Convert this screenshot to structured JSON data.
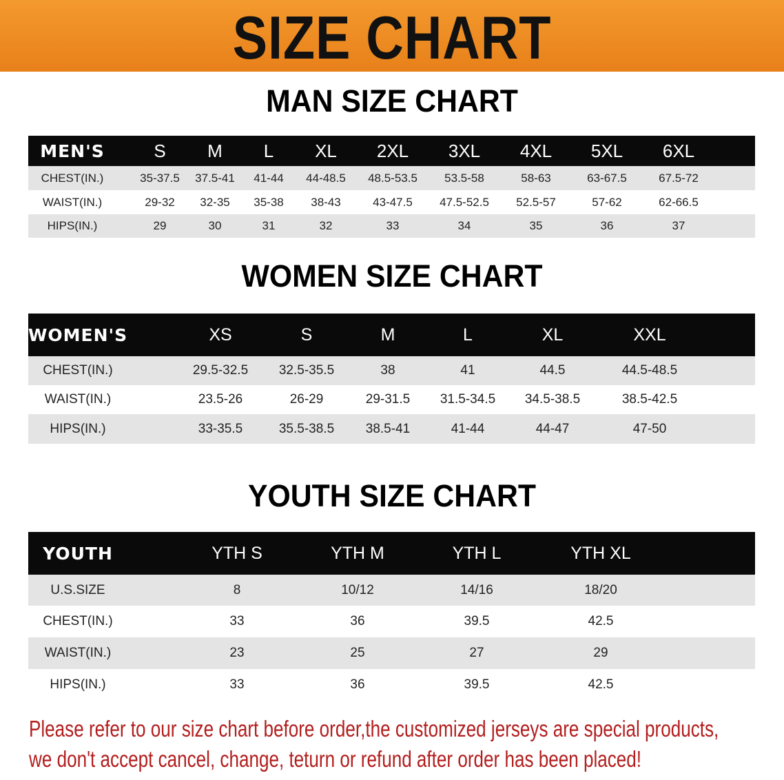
{
  "banner": {
    "title": "SIZE CHART",
    "color": "#ee8a22"
  },
  "men": {
    "title": "MAN SIZE CHART",
    "headers": [
      "MEN'S",
      "S",
      "M",
      "L",
      "XL",
      "2XL",
      "3XL",
      "4XL",
      "5XL",
      "6XL"
    ],
    "rows": [
      [
        "CHEST(IN.)",
        "35-37.5",
        "37.5-41",
        "41-44",
        "44-48.5",
        "48.5-53.5",
        "53.5-58",
        "58-63",
        "63-67.5",
        "67.5-72"
      ],
      [
        "WAIST(IN.)",
        "29-32",
        "32-35",
        "35-38",
        "38-43",
        "43-47.5",
        "47.5-52.5",
        "52.5-57",
        "57-62",
        "62-66.5"
      ],
      [
        "HIPS(IN.)",
        "29",
        "30",
        "31",
        "32",
        "33",
        "34",
        "35",
        "36",
        "37"
      ]
    ]
  },
  "women": {
    "title": "WOMEN SIZE CHART",
    "headers": [
      "WOMEN'S",
      "XS",
      "S",
      "M",
      "L",
      "XL",
      "XXL"
    ],
    "rows": [
      [
        "CHEST(IN.)",
        "29.5-32.5",
        "32.5-35.5",
        "38",
        "41",
        "44.5",
        "44.5-48.5"
      ],
      [
        "WAIST(IN.)",
        "23.5-26",
        "26-29",
        "29-31.5",
        "31.5-34.5",
        "34.5-38.5",
        "38.5-42.5"
      ],
      [
        "HIPS(IN.)",
        "33-35.5",
        "35.5-38.5",
        "38.5-41",
        "41-44",
        "44-47",
        "47-50"
      ]
    ]
  },
  "youth": {
    "title": "YOUTH SIZE CHART",
    "headers": [
      "YOUTH",
      "YTH S",
      "YTH M",
      "YTH L",
      "YTH XL"
    ],
    "rows": [
      [
        "U.S.SIZE",
        "8",
        "10/12",
        "14/16",
        "18/20"
      ],
      [
        "CHEST(IN.)",
        "33",
        "36",
        "39.5",
        "42.5"
      ],
      [
        "WAIST(IN.)",
        "23",
        "25",
        "27",
        "29"
      ],
      [
        "HIPS(IN.)",
        "33",
        "36",
        "39.5",
        "42.5"
      ]
    ]
  },
  "notice": {
    "line1": "Please refer to our size chart before order,the customized jerseys are special products,",
    "line2": "we don't accept cancel, change, teturn or refund after order has been placed!",
    "color": "#b31e1e"
  }
}
